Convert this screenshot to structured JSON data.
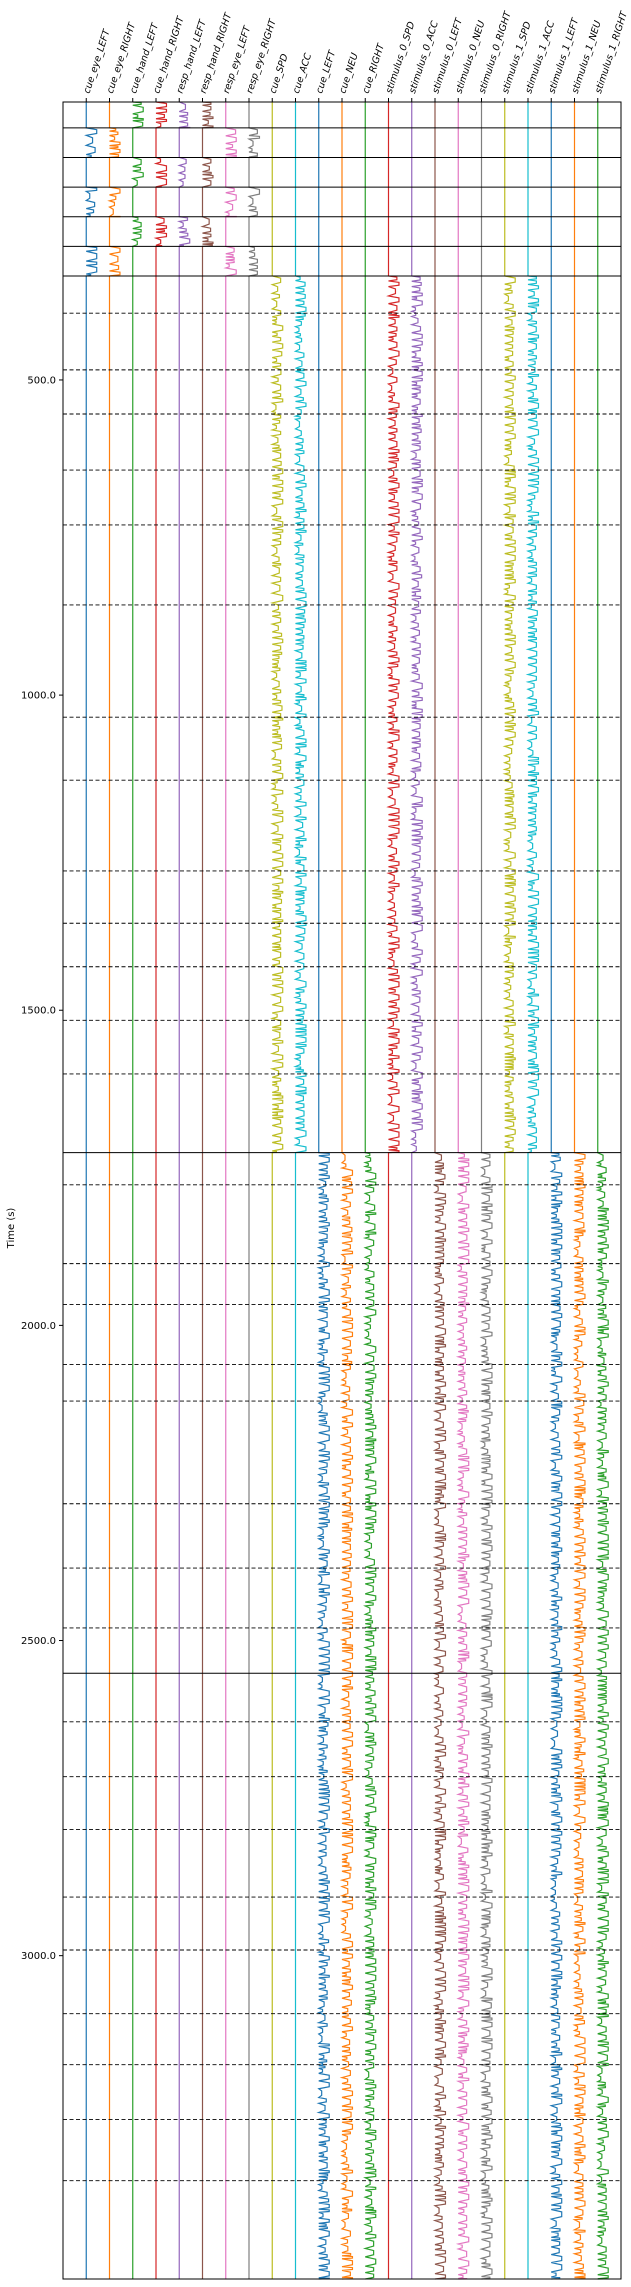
{
  "chart_data": {
    "type": "line",
    "title": "",
    "xlabel": "",
    "ylabel": "Time (s)",
    "ylim": [
      3513,
      59
    ],
    "yticks": [
      500.0,
      1000.0,
      1500.0,
      2000.0,
      2500.0,
      3000.0
    ],
    "grid": false,
    "legend": "none",
    "solid_separators": [
      100,
      147,
      194,
      241,
      288,
      335,
      1726,
      2552
    ],
    "dashed_separators": [
      394,
      484,
      554,
      643,
      730,
      857,
      1035,
      1135,
      1279,
      1362,
      1431,
      1516,
      1601,
      1777,
      1902,
      1967,
      2062,
      2120,
      2283,
      2385,
      2480,
      2629,
      2716,
      2800,
      2907,
      2991,
      3092,
      3173,
      3260,
      3357
    ],
    "series": [
      {
        "name": "cue_eye_LEFT",
        "color": "#1f77b4",
        "active": [
          [
            100,
            147
          ],
          [
            194,
            241
          ],
          [
            288,
            335
          ]
        ]
      },
      {
        "name": "cue_eye_RIGHT",
        "color": "#ff7f0e",
        "active": [
          [
            100,
            147
          ],
          [
            194,
            241
          ],
          [
            288,
            335
          ]
        ]
      },
      {
        "name": "cue_hand_LEFT",
        "color": "#2ca02c",
        "active": [
          [
            59,
            100
          ],
          [
            147,
            194
          ],
          [
            241,
            288
          ]
        ]
      },
      {
        "name": "cue_hand_RIGHT",
        "color": "#d62728",
        "active": [
          [
            59,
            100
          ],
          [
            147,
            194
          ],
          [
            241,
            288
          ]
        ]
      },
      {
        "name": "resp_hand_LEFT",
        "color": "#9467bd",
        "active": [
          [
            59,
            100
          ],
          [
            147,
            194
          ],
          [
            241,
            288
          ]
        ]
      },
      {
        "name": "resp_hand_RIGHT",
        "color": "#8c564b",
        "active": [
          [
            59,
            100
          ],
          [
            147,
            194
          ],
          [
            241,
            288
          ]
        ]
      },
      {
        "name": "resp_eye_LEFT",
        "color": "#e377c2",
        "active": [
          [
            100,
            147
          ],
          [
            194,
            241
          ],
          [
            288,
            335
          ]
        ]
      },
      {
        "name": "resp_eye_RIGHT",
        "color": "#7f7f7f",
        "active": [
          [
            100,
            147
          ],
          [
            194,
            241
          ],
          [
            288,
            335
          ]
        ]
      },
      {
        "name": "cue_SPD",
        "color": "#bcbd22",
        "active": [
          [
            335,
            1726
          ]
        ]
      },
      {
        "name": "cue_ACC",
        "color": "#17becf",
        "active": [
          [
            335,
            1726
          ]
        ]
      },
      {
        "name": "cue_LEFT",
        "color": "#1f77b4",
        "active": [
          [
            1726,
            3513
          ]
        ]
      },
      {
        "name": "cue_NEU",
        "color": "#ff7f0e",
        "active": [
          [
            1726,
            3513
          ]
        ]
      },
      {
        "name": "cue_RIGHT",
        "color": "#2ca02c",
        "active": [
          [
            1726,
            3513
          ]
        ]
      },
      {
        "name": "stimulus_0_SPD",
        "color": "#d62728",
        "active": [
          [
            335,
            1726
          ]
        ]
      },
      {
        "name": "stimulus_0_ACC",
        "color": "#9467bd",
        "active": [
          [
            335,
            1726
          ]
        ]
      },
      {
        "name": "stimulus_0_LEFT",
        "color": "#8c564b",
        "active": [
          [
            1726,
            3513
          ]
        ]
      },
      {
        "name": "stimulus_0_NEU",
        "color": "#e377c2",
        "active": [
          [
            1726,
            3513
          ]
        ]
      },
      {
        "name": "stimulus_0_RIGHT",
        "color": "#7f7f7f",
        "active": [
          [
            1726,
            3513
          ]
        ]
      },
      {
        "name": "stimulus_1_SPD",
        "color": "#bcbd22",
        "active": [
          [
            335,
            1726
          ]
        ]
      },
      {
        "name": "stimulus_1_ACC",
        "color": "#17becf",
        "active": [
          [
            335,
            1726
          ]
        ]
      },
      {
        "name": "stimulus_1_LEFT",
        "color": "#1f77b4",
        "active": [
          [
            1726,
            3513
          ]
        ]
      },
      {
        "name": "stimulus_1_NEU",
        "color": "#ff7f0e",
        "active": [
          [
            1726,
            3513
          ]
        ]
      },
      {
        "name": "stimulus_1_RIGHT",
        "color": "#2ca02c",
        "active": [
          [
            1726,
            3513
          ]
        ]
      }
    ]
  }
}
